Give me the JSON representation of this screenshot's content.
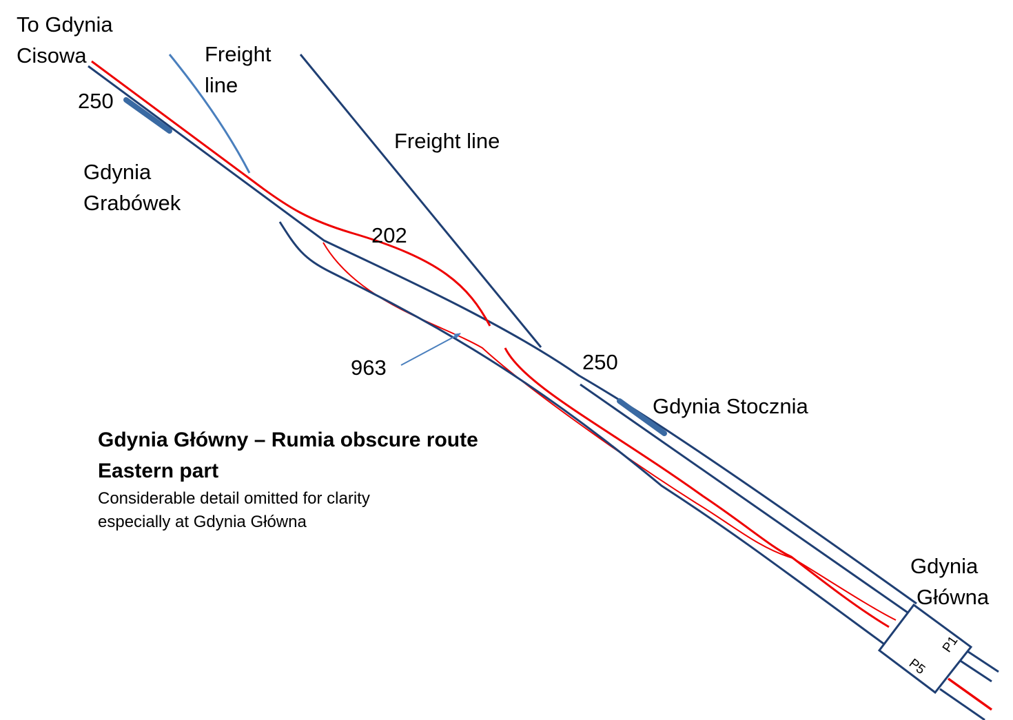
{
  "labels": {
    "to_cisowa_line1": "To Gdynia",
    "to_cisowa_line2": "Cisowa",
    "freight_line_1_line1": "Freight",
    "freight_line_1_line2": "line",
    "freight_line_2": "Freight line",
    "route_250_west": "250",
    "route_250_east": "250",
    "route_202": "202",
    "route_963": "963",
    "grabowek_line1": "Gdynia",
    "grabowek_line2": "Grabówek",
    "stocznia": "Gdynia Stocznia",
    "glowna_line1": "Gdynia",
    "glowna_line2": "Główna",
    "platform_p1": "P1",
    "platform_p5": "P5"
  },
  "title": {
    "line1": "Gdynia Główny – Rumia obscure route",
    "line2": "Eastern part",
    "note_line1": "Considerable detail omitted for clarity",
    "note_line2": "especially at Gdynia Główna"
  },
  "colors": {
    "track_blue": "#1f3f73",
    "track_red": "#ee0000",
    "freight_light_blue": "#4a7fbd",
    "platform_blue": "#3a6aa3",
    "arrow_blue": "#4a7fbd"
  }
}
